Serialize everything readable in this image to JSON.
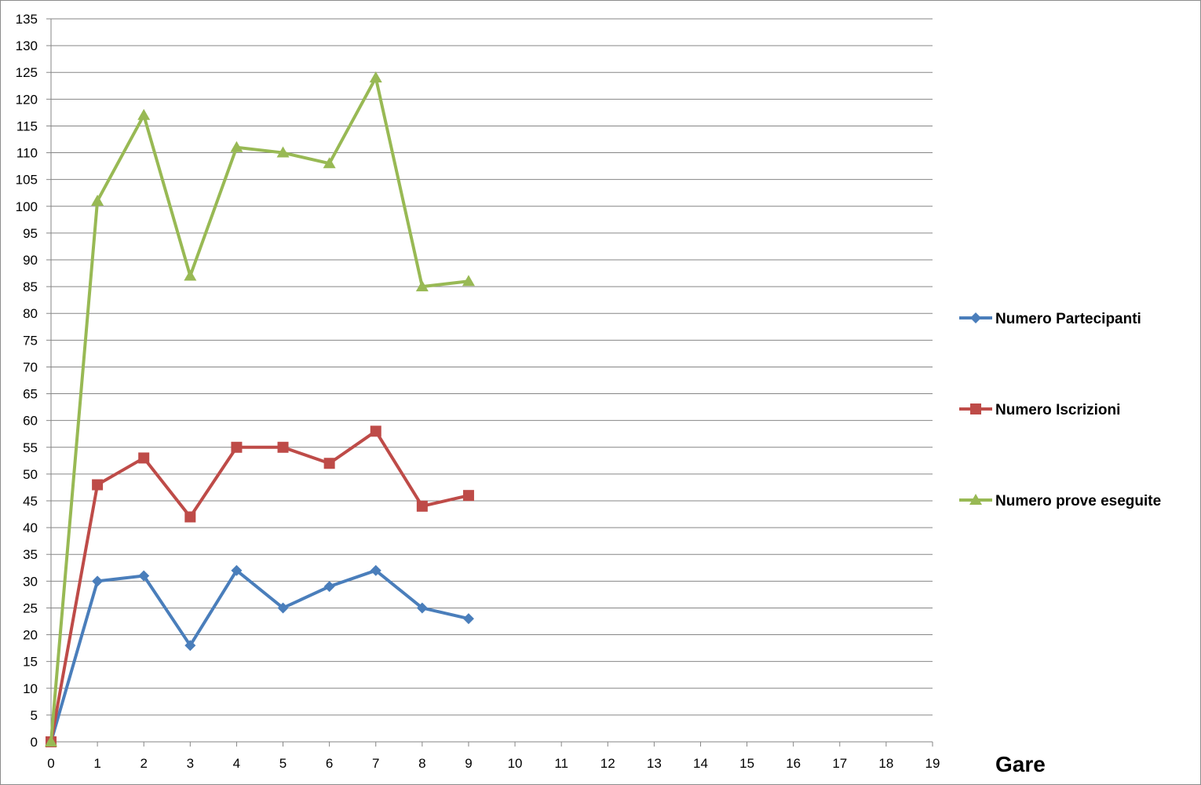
{
  "chart_data": {
    "type": "line",
    "title": "",
    "xlabel": "Gare",
    "ylabel": "",
    "xlim": [
      0,
      19
    ],
    "ylim": [
      0,
      135
    ],
    "x_ticks": [
      0,
      1,
      2,
      3,
      4,
      5,
      6,
      7,
      8,
      9,
      10,
      11,
      12,
      13,
      14,
      15,
      16,
      17,
      18,
      19
    ],
    "y_ticks": [
      0,
      5,
      10,
      15,
      20,
      25,
      30,
      35,
      40,
      45,
      50,
      55,
      60,
      65,
      70,
      75,
      80,
      85,
      90,
      95,
      100,
      105,
      110,
      115,
      120,
      125,
      130,
      135
    ],
    "grid": "horizontal",
    "legend": "right",
    "x": [
      0,
      1,
      2,
      3,
      4,
      5,
      6,
      7,
      8,
      9
    ],
    "series": [
      {
        "name": "Numero Partecipanti",
        "color": "#4a7ebb",
        "marker": "diamond",
        "values": [
          0,
          30,
          31,
          18,
          32,
          25,
          29,
          32,
          25,
          23
        ]
      },
      {
        "name": "Numero Iscrizioni",
        "color": "#be4b48",
        "marker": "square",
        "values": [
          0,
          48,
          53,
          42,
          55,
          55,
          52,
          58,
          44,
          46
        ]
      },
      {
        "name": "Numero prove eseguite",
        "color": "#98b954",
        "marker": "triangle",
        "values": [
          0,
          101,
          117,
          87,
          111,
          110,
          108,
          124,
          85,
          86
        ]
      }
    ]
  }
}
